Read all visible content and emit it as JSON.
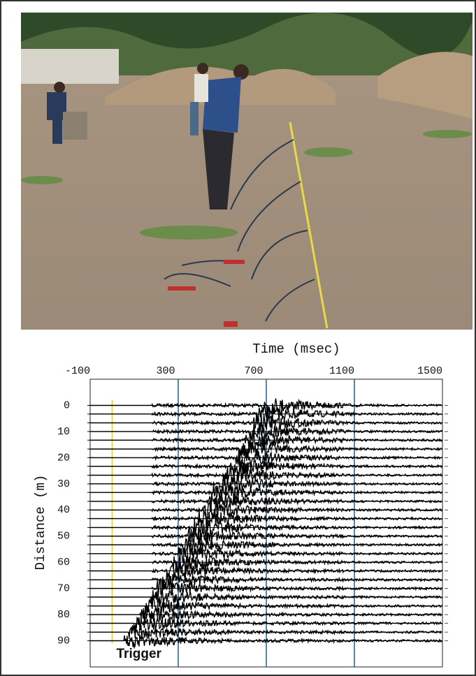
{
  "chart_data": {
    "type": "seismogram",
    "x_label": "Time (msec)",
    "y_label": "Distance (m)",
    "xlim": [
      -100,
      1500
    ],
    "xticks": [
      -100,
      300,
      700,
      1100,
      1500
    ],
    "ylim": [
      -10,
      100
    ],
    "yticks": [
      0,
      10,
      20,
      30,
      40,
      50,
      60,
      70,
      80,
      90
    ],
    "grid_x": [
      300,
      700,
      1100
    ],
    "grid_color": "#1f5f8f",
    "trigger": {
      "label": "Trigger",
      "value": 0,
      "color": "#e8d84a"
    },
    "trace_color": "#000000",
    "traces": [
      {
        "distance": 0,
        "arrival": 720
      },
      {
        "distance": 3.3,
        "arrival": 700
      },
      {
        "distance": 6.7,
        "arrival": 680
      },
      {
        "distance": 10,
        "arrival": 660
      },
      {
        "distance": 13.3,
        "arrival": 640
      },
      {
        "distance": 16.7,
        "arrival": 620
      },
      {
        "distance": 20,
        "arrival": 600
      },
      {
        "distance": 23.3,
        "arrival": 575
      },
      {
        "distance": 26.7,
        "arrival": 550
      },
      {
        "distance": 30,
        "arrival": 525
      },
      {
        "distance": 33.3,
        "arrival": 500
      },
      {
        "distance": 36.7,
        "arrival": 480
      },
      {
        "distance": 40,
        "arrival": 455
      },
      {
        "distance": 43.3,
        "arrival": 430
      },
      {
        "distance": 46.7,
        "arrival": 410
      },
      {
        "distance": 50,
        "arrival": 385
      },
      {
        "distance": 53.3,
        "arrival": 360
      },
      {
        "distance": 56.7,
        "arrival": 340
      },
      {
        "distance": 60,
        "arrival": 315
      },
      {
        "distance": 63.3,
        "arrival": 290
      },
      {
        "distance": 66.7,
        "arrival": 265
      },
      {
        "distance": 70,
        "arrival": 240
      },
      {
        "distance": 73.3,
        "arrival": 215
      },
      {
        "distance": 76.7,
        "arrival": 190
      },
      {
        "distance": 80,
        "arrival": 165
      },
      {
        "distance": 83.3,
        "arrival": 140
      },
      {
        "distance": 86.7,
        "arrival": 115
      },
      {
        "distance": 90,
        "arrival": 95
      }
    ]
  }
}
